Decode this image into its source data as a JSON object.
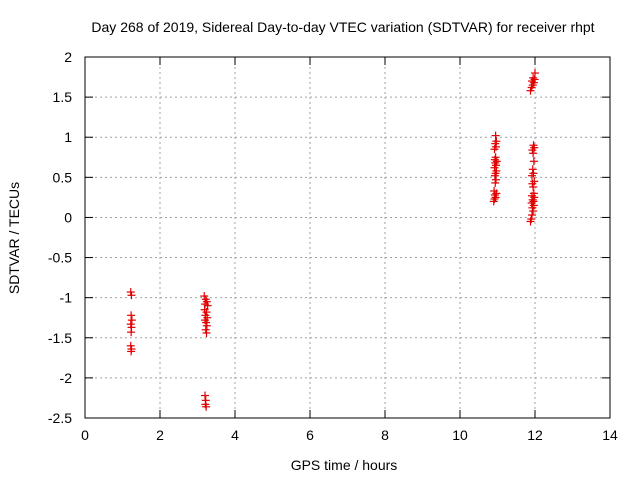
{
  "chart_data": {
    "type": "scatter",
    "title": "Day 268 of 2019, Sidereal Day-to-day VTEC variation (SDTVAR) for receiver rhpt",
    "xlabel": "GPS time / hours",
    "ylabel": "SDTVAR / TECUs",
    "xlim": [
      0,
      14
    ],
    "ylim": [
      -2.5,
      2
    ],
    "xticks": [
      "0",
      "2",
      "4",
      "6",
      "8",
      "10",
      "12",
      "14"
    ],
    "yticks": [
      "-2.5",
      "-2",
      "-1.5",
      "-1",
      "-0.5",
      "0",
      "0.5",
      "1",
      "1.5",
      "2"
    ],
    "grid": true,
    "marker": "plus",
    "marker_color": "#e00000",
    "points": [
      [
        1.22,
        -0.93
      ],
      [
        1.24,
        -0.97
      ],
      [
        1.23,
        -1.22
      ],
      [
        1.25,
        -1.28
      ],
      [
        1.22,
        -1.33
      ],
      [
        1.24,
        -1.37
      ],
      [
        1.23,
        -1.43
      ],
      [
        1.22,
        -1.6
      ],
      [
        1.24,
        -1.64
      ],
      [
        1.23,
        -1.67
      ],
      [
        3.18,
        -0.98
      ],
      [
        3.22,
        -1.02
      ],
      [
        3.25,
        -1.05
      ],
      [
        3.2,
        -1.08
      ],
      [
        3.27,
        -1.1
      ],
      [
        3.19,
        -1.15
      ],
      [
        3.24,
        -1.18
      ],
      [
        3.21,
        -1.22
      ],
      [
        3.26,
        -1.25
      ],
      [
        3.2,
        -1.28
      ],
      [
        3.23,
        -1.31
      ],
      [
        3.25,
        -1.35
      ],
      [
        3.22,
        -1.4
      ],
      [
        3.24,
        -1.44
      ],
      [
        3.2,
        -2.22
      ],
      [
        3.22,
        -2.28
      ],
      [
        3.21,
        -2.33
      ],
      [
        3.23,
        -2.36
      ],
      [
        10.9,
        0.2
      ],
      [
        10.92,
        0.23
      ],
      [
        10.95,
        0.25
      ],
      [
        10.93,
        0.28
      ],
      [
        10.97,
        0.3
      ],
      [
        10.91,
        0.33
      ],
      [
        10.94,
        0.43
      ],
      [
        10.96,
        0.47
      ],
      [
        10.93,
        0.52
      ],
      [
        10.95,
        0.55
      ],
      [
        10.97,
        0.58
      ],
      [
        10.92,
        0.62
      ],
      [
        10.96,
        0.65
      ],
      [
        10.94,
        0.68
      ],
      [
        10.98,
        0.7
      ],
      [
        10.93,
        0.72
      ],
      [
        10.95,
        0.75
      ],
      [
        10.92,
        0.85
      ],
      [
        10.96,
        0.88
      ],
      [
        10.94,
        0.92
      ],
      [
        10.97,
        0.95
      ],
      [
        10.95,
        1.02
      ],
      [
        11.88,
        -0.05
      ],
      [
        11.9,
        -0.02
      ],
      [
        11.92,
        0.03
      ],
      [
        11.95,
        0.08
      ],
      [
        11.93,
        0.12
      ],
      [
        11.97,
        0.15
      ],
      [
        11.91,
        0.18
      ],
      [
        11.96,
        0.2
      ],
      [
        11.94,
        0.22
      ],
      [
        11.98,
        0.25
      ],
      [
        11.92,
        0.27
      ],
      [
        11.97,
        0.3
      ],
      [
        11.95,
        0.38
      ],
      [
        11.93,
        0.42
      ],
      [
        11.98,
        0.45
      ],
      [
        11.92,
        0.52
      ],
      [
        11.96,
        0.55
      ],
      [
        11.94,
        0.6
      ],
      [
        11.97,
        0.7
      ],
      [
        11.95,
        0.8
      ],
      [
        11.93,
        0.84
      ],
      [
        11.98,
        0.87
      ],
      [
        11.96,
        0.9
      ],
      [
        11.88,
        1.58
      ],
      [
        11.91,
        1.62
      ],
      [
        11.94,
        1.65
      ],
      [
        11.97,
        1.68
      ],
      [
        11.92,
        1.7
      ],
      [
        11.99,
        1.72
      ],
      [
        11.95,
        1.74
      ],
      [
        12.0,
        1.8
      ]
    ]
  }
}
